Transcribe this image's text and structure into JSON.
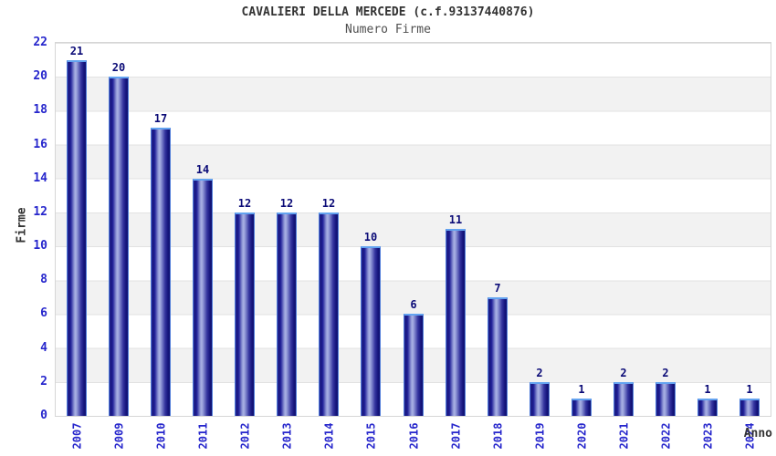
{
  "page": {
    "title": "CAVALIERI DELLA MERCEDE (c.f.93137440876)",
    "subtitle": "Numero Firme"
  },
  "chart_data": {
    "type": "bar",
    "title": "CAVALIERI DELLA MERCEDE (c.f.93137440876)",
    "subtitle": "Numero Firme",
    "categories": [
      "2007",
      "2009",
      "2010",
      "2011",
      "2012",
      "2013",
      "2014",
      "2015",
      "2016",
      "2017",
      "2018",
      "2019",
      "2020",
      "2021",
      "2022",
      "2023",
      "2024"
    ],
    "values": [
      21,
      20,
      17,
      14,
      12,
      12,
      12,
      10,
      6,
      11,
      7,
      2,
      1,
      2,
      2,
      1,
      1
    ],
    "xlabel": "Anno",
    "ylabel": "Firme",
    "ylim": [
      0,
      22
    ],
    "ytick_step": 2,
    "grid": true,
    "legend": false,
    "value_labels": true,
    "colors": {
      "bar_dark": "#15157d",
      "bar_mid": "#2e2e9e",
      "bar_light": "#aab2e4",
      "bar_border": "#4f7cd9",
      "bar_cap": "#63a3f0",
      "tick_label": "#2626cc",
      "value_label": "#0b0b77",
      "band": "#f2f2f2",
      "gridline": "#e2e2e2",
      "plot_border": "#d6d6d6",
      "title": "#333333",
      "subtitle": "#4f4f4f",
      "axis_title": "#333333"
    }
  }
}
